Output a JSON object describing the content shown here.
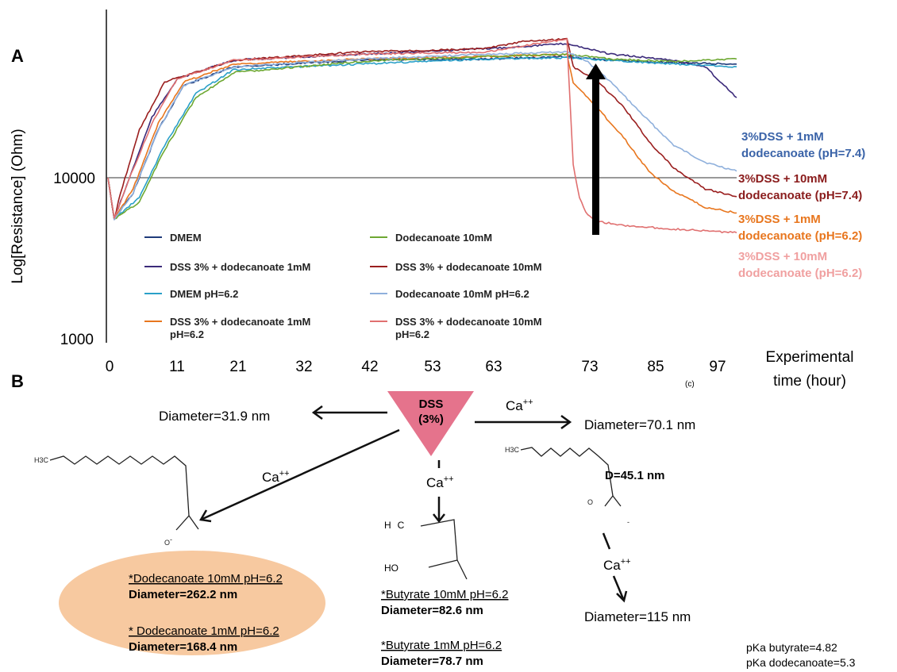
{
  "panel_a": {
    "letter": "A",
    "ylabel": "Log[Resistance] (Ohm)",
    "xlabel_line1": "Experimental",
    "xlabel_line2": "time (hour)",
    "copyright": "(c)",
    "yticks": [
      "10000",
      "1000"
    ],
    "xticks": [
      "0",
      "11",
      "21",
      "32",
      "42",
      "53",
      "63",
      "73",
      "85",
      "97"
    ],
    "legend": [
      {
        "label": "DMEM",
        "color": "#1f3b7a"
      },
      {
        "label": "DSS 3%  + dodecanoate 1mM",
        "color": "#3b2a7a"
      },
      {
        "label": "DMEM  pH=6.2",
        "color": "#2aa0c8"
      },
      {
        "label": "DSS 3%  + dodecanoate 1mM pH=6.2",
        "color": "#e8761e"
      },
      {
        "label": "Dodecanoate 10mM",
        "color": "#6ea832"
      },
      {
        "label": "DSS 3%  + dodecanoate 10mM",
        "color": "#9a1e1e"
      },
      {
        "label": "Dodecanoate 10mM pH=6.2",
        "color": "#8fb0dc"
      },
      {
        "label": "DSS 3%  + dodecanoate 10mM pH=6.2",
        "color": "#e07070"
      }
    ],
    "annotations": [
      {
        "line1": "3%DSS + 1mM",
        "line2": "dodecanoate (pH=7.4)",
        "color": "#3a63a8"
      },
      {
        "line1": "3%DSS + 10mM",
        "line2": "dodecanoate (pH=7.4)",
        "color": "#8a1c1c"
      },
      {
        "line1": "3%DSS + 1mM",
        "line2": "dodecanoate (pH=6.2)",
        "color": "#e8761e"
      },
      {
        "line1": "3%DSS + 10mM",
        "line2": "dodecanoate (pH=6.2)",
        "color": "#f0a0a0"
      }
    ]
  },
  "chart_data": {
    "type": "line",
    "title": "",
    "xlabel": "Experimental time (hour)",
    "ylabel": "Log[Resistance] (Ohm)",
    "y_scale": "log",
    "xlim": [
      0,
      100
    ],
    "ylim": [
      1000,
      100000
    ],
    "x_tick_labels": [
      "0",
      "11",
      "21",
      "32",
      "42",
      "53",
      "63",
      "73",
      "85",
      "97"
    ],
    "y_tick_labels": [
      "10000",
      "1000"
    ],
    "hline": 10000,
    "arrow_at_x": 73,
    "series": [
      {
        "name": "DMEM",
        "color": "#1f3b7a",
        "x": [
          0,
          1,
          4,
          8,
          12,
          20,
          40,
          60,
          73,
          80,
          90,
          100
        ],
        "y": [
          10000,
          5500,
          8000,
          20000,
          38000,
          50000,
          55000,
          56000,
          58000,
          55000,
          53000,
          52000
        ]
      },
      {
        "name": "DSS 3%  + dodecanoate 1mM",
        "color": "#3b2a7a",
        "x": [
          0,
          1,
          3,
          7,
          11,
          20,
          40,
          60,
          73,
          80,
          90,
          95,
          100
        ],
        "y": [
          10000,
          5500,
          9000,
          24000,
          42000,
          55000,
          60000,
          65000,
          70000,
          60000,
          55000,
          50000,
          32000
        ]
      },
      {
        "name": "DMEM  pH=6.2",
        "color": "#2aa0c8",
        "x": [
          0,
          1,
          5,
          9,
          14,
          20,
          40,
          60,
          73,
          80,
          90,
          100
        ],
        "y": [
          10000,
          5500,
          7500,
          16000,
          34000,
          48000,
          52000,
          56000,
          57000,
          55000,
          52000,
          50000
        ]
      },
      {
        "name": "DSS 3%  + dodecanoate 1mM pH=6.2",
        "color": "#e8761e",
        "x": [
          0,
          1,
          4,
          8,
          12,
          20,
          40,
          60,
          73,
          74,
          78,
          82,
          86,
          90,
          95,
          100
        ],
        "y": [
          10000,
          5500,
          8500,
          22000,
          40000,
          52000,
          56000,
          58000,
          60000,
          40000,
          27000,
          18000,
          11000,
          8200,
          6500,
          6000
        ]
      },
      {
        "name": "Dodecanoate 10mM",
        "color": "#6ea832",
        "x": [
          0,
          1,
          5,
          9,
          14,
          20,
          40,
          60,
          73,
          80,
          90,
          100
        ],
        "y": [
          10000,
          5500,
          7000,
          15000,
          32000,
          46000,
          54000,
          58000,
          60000,
          56000,
          54000,
          56000
        ]
      },
      {
        "name": "DSS 3%  + dodecanoate 10mM",
        "color": "#9a1e1e",
        "x": [
          0,
          1,
          2,
          5,
          9,
          20,
          40,
          60,
          66,
          73,
          74,
          78,
          82,
          86,
          90,
          95,
          100
        ],
        "y": [
          10000,
          5500,
          8000,
          20000,
          40000,
          55000,
          62000,
          65000,
          72000,
          75000,
          50000,
          40000,
          28000,
          17000,
          11500,
          8500,
          7600
        ]
      },
      {
        "name": "Dodecanoate 10mM pH=6.2",
        "color": "#8fb0dc",
        "x": [
          0,
          1,
          4,
          8,
          12,
          20,
          40,
          60,
          73,
          76,
          80,
          85,
          90,
          95,
          100
        ],
        "y": [
          10000,
          5500,
          8000,
          20000,
          38000,
          50000,
          56000,
          60000,
          62000,
          55000,
          40000,
          25000,
          16000,
          12500,
          11000
        ]
      },
      {
        "name": "DSS 3%  + dodecanoate 10mM pH=6.2",
        "color": "#e07070",
        "x": [
          0,
          1,
          3,
          7,
          11,
          20,
          40,
          60,
          73,
          73.5,
          74,
          75,
          76,
          78,
          82,
          90,
          100
        ],
        "y": [
          10000,
          5500,
          9000,
          22000,
          42000,
          55000,
          60000,
          62000,
          75000,
          30000,
          12000,
          7500,
          6000,
          5300,
          5000,
          4750,
          4500
        ]
      }
    ]
  },
  "panel_b": {
    "letter": "B",
    "dss_line1": "DSS",
    "dss_line2": "(3%)",
    "diameter_left": "Diameter=31.9 nm",
    "diameter_right": "Diameter=70.1 nm",
    "ca_top_right": "Ca",
    "ca_left": "Ca",
    "ca_middle": "Ca",
    "ca_right": "Ca",
    "ca_sup": "++",
    "d_label": "D=45.1 nm",
    "diameter_115": "Diameter=115 nm",
    "dodec_10": "*Dodecanoate 10mM pH=6.2",
    "dodec_10_diam": "Diameter=262.2 nm",
    "dodec_1": "* Dodecanoate 1mM pH=6.2",
    "dodec_1_diam": "Diameter=168.4 nm",
    "but_10": "*Butyrate  10mM pH=6.2",
    "but_10_diam": "Diameter=82.6 nm",
    "but_1": "*Butyrate  1mM pH=6.2",
    "but_1_diam": "Diameter=78.7 nm",
    "pka_butyrate": "pKa butyrate=4.82",
    "pka_dodecanoate": "pKa dodecanoate=5.3",
    "chem_h3c": "H3C",
    "chem_ho": "HO",
    "chem_o": "O",
    "chem_h": "H",
    "chem_c": "C",
    "chem_minus": "-",
    "colors": {
      "triangle": "#e5738c",
      "ellipse": "#f7c9a0"
    }
  }
}
